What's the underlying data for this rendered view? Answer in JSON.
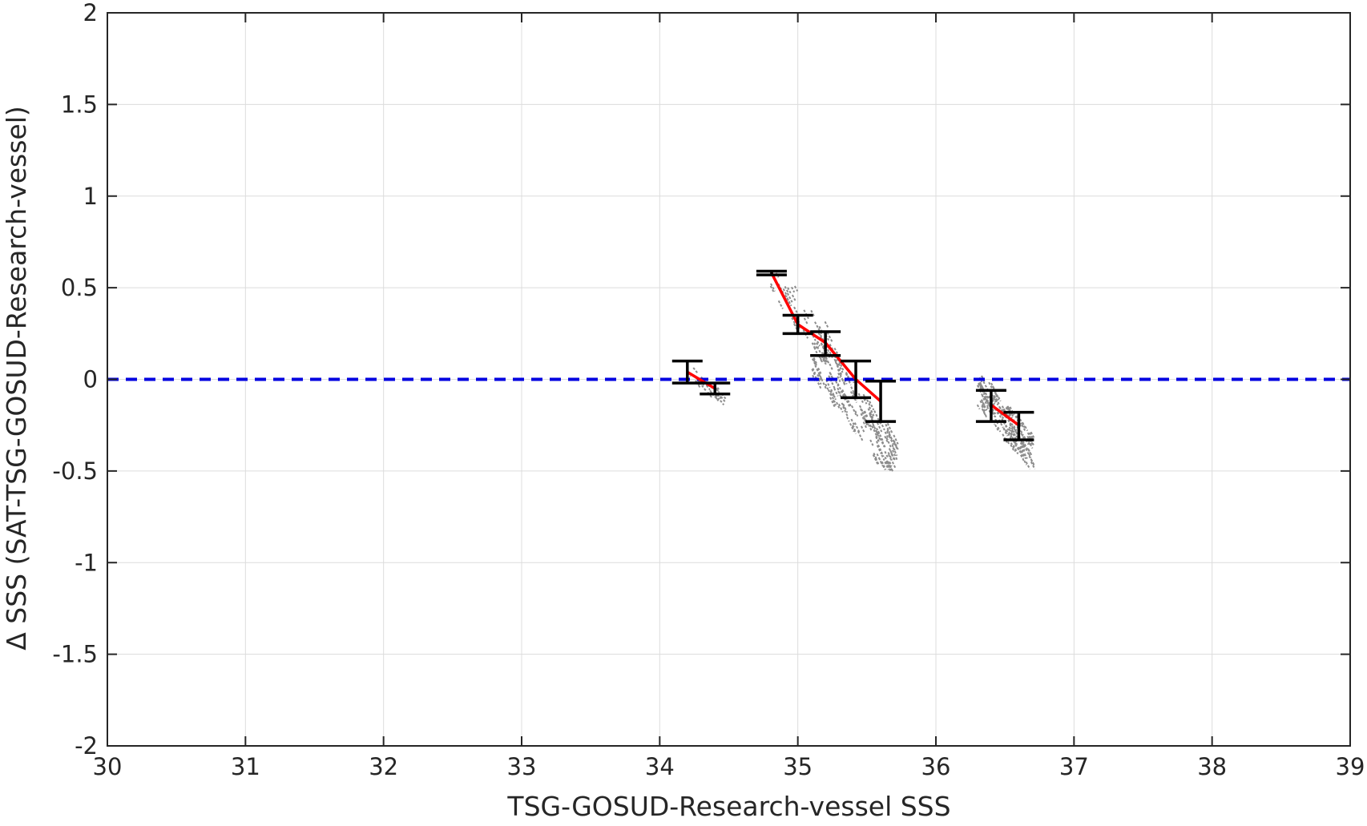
{
  "colors": {
    "grid": "#dcdcdc",
    "axis": "#262626",
    "scatter": "#8c8c8c",
    "mean_line": "#ff0000",
    "error_bar": "#000000",
    "zero_line": "#0000e0"
  },
  "chart_data": {
    "type": "scatter",
    "title": "",
    "xlabel": "TSG-GOSUD-Research-vessel SSS",
    "ylabel": "Δ SSS (SAT-TSG-GOSUD-Research-vessel)",
    "xlim": [
      30,
      39
    ],
    "ylim": [
      -2,
      2
    ],
    "xticks": [
      30,
      31,
      32,
      33,
      34,
      35,
      36,
      37,
      38,
      39
    ],
    "xtick_labels": [
      "30",
      "31",
      "32",
      "33",
      "34",
      "35",
      "36",
      "37",
      "38",
      "39"
    ],
    "yticks": [
      -2,
      -1.5,
      -1,
      -0.5,
      0,
      0.5,
      1,
      1.5,
      2
    ],
    "ytick_labels": [
      "-2",
      "-1.5",
      "-1",
      "-0.5",
      "0",
      "0.5",
      "1",
      "1.5",
      "2"
    ],
    "grid": true,
    "reference_line": {
      "y": 0,
      "style": "dashed",
      "color": "#0000e0"
    },
    "scatter_clusters": [
      {
        "x": [
          34.2,
          34.45
        ],
        "y": [
          -0.12,
          0.08
        ],
        "slope": -0.6,
        "count": 30
      },
      {
        "x": [
          34.8,
          35.3
        ],
        "y": [
          0.1,
          0.58
        ],
        "slope": -0.9,
        "count": 40
      },
      {
        "x": [
          35.1,
          35.7
        ],
        "y": [
          -0.45,
          0.2
        ],
        "slope": -1.0,
        "count": 180
      },
      {
        "x": [
          36.3,
          36.7
        ],
        "y": [
          -0.45,
          0.02
        ],
        "slope": -0.9,
        "count": 160
      }
    ],
    "series": [
      {
        "kind": "mean_with_error",
        "segments": [
          {
            "x": [
              34.2,
              34.4
            ],
            "y": [
              0.04,
              -0.05
            ]
          },
          {
            "x": [
              34.81,
              35.0,
              35.2,
              35.42,
              35.6
            ],
            "y": [
              0.58,
              0.3,
              0.2,
              0.0,
              -0.12
            ]
          },
          {
            "x": [
              36.4,
              36.6
            ],
            "y": [
              -0.14,
              -0.25
            ]
          }
        ],
        "error_bars": [
          {
            "x": 34.2,
            "low": -0.02,
            "high": 0.1
          },
          {
            "x": 34.4,
            "low": -0.08,
            "high": -0.02
          },
          {
            "x": 34.81,
            "low": 0.57,
            "high": 0.59
          },
          {
            "x": 35.0,
            "low": 0.25,
            "high": 0.35
          },
          {
            "x": 35.2,
            "low": 0.13,
            "high": 0.26
          },
          {
            "x": 35.42,
            "low": -0.1,
            "high": 0.1
          },
          {
            "x": 35.6,
            "low": -0.23,
            "high": -0.01
          },
          {
            "x": 36.4,
            "low": -0.23,
            "high": -0.06
          },
          {
            "x": 36.6,
            "low": -0.33,
            "high": -0.18
          }
        ]
      }
    ]
  }
}
